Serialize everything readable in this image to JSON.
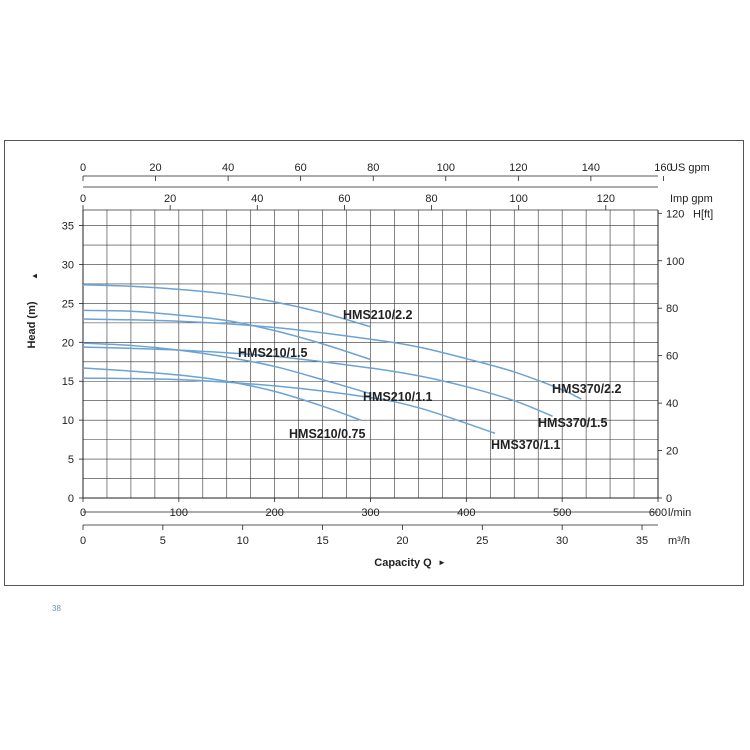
{
  "page": {
    "page_number": "38"
  },
  "chart_data": {
    "type": "line",
    "title": "",
    "ylabel": "Head (m)",
    "ylabel_arrow": "▲",
    "xlabel": "Capacity Q",
    "xlabel_arrow": "►",
    "ylim": [
      0,
      37
    ],
    "xlim": [
      0,
      600
    ],
    "grid": true,
    "line_color": "#6aa3d5",
    "grid_color": "#333333",
    "axes": {
      "left_m": {
        "unit": "",
        "ticks": [
          0,
          5,
          10,
          15,
          20,
          25,
          30,
          35
        ]
      },
      "right_ft": {
        "unit": "H[ft]",
        "ticks": [
          0,
          20,
          40,
          60,
          80,
          100,
          120
        ]
      },
      "bottom_lmin": {
        "unit": "l/min",
        "ticks": [
          0,
          100,
          200,
          300,
          400,
          500,
          600
        ]
      },
      "bottom_m3h": {
        "unit": "m³/h",
        "ticks": [
          0,
          5,
          10,
          15,
          20,
          25,
          30,
          35
        ]
      },
      "top_usgpm": {
        "unit": "US gpm",
        "ticks": [
          0,
          20,
          40,
          60,
          80,
          100,
          120,
          140,
          160
        ]
      },
      "top_impgpm": {
        "unit": "Imp gpm",
        "ticks": [
          0,
          20,
          40,
          60,
          80,
          100,
          120
        ]
      }
    },
    "series": [
      {
        "name": "HMS210/2.2",
        "x": [
          0,
          50,
          100,
          150,
          200,
          250,
          300
        ],
        "y": [
          27.4,
          27.2,
          26.8,
          26.2,
          25.2,
          23.8,
          22.0
        ]
      },
      {
        "name": "HMS210/1.5",
        "x": [
          0,
          50,
          100,
          150,
          200,
          250,
          300
        ],
        "y": [
          24.1,
          24.0,
          23.5,
          22.8,
          21.5,
          19.8,
          17.8
        ]
      },
      {
        "name": "HMS210/1.1",
        "x": [
          0,
          50,
          100,
          150,
          200,
          250,
          300
        ],
        "y": [
          19.9,
          19.6,
          19.0,
          18.1,
          16.9,
          15.2,
          13.4
        ]
      },
      {
        "name": "HMS210/0.75",
        "x": [
          0,
          50,
          100,
          150,
          200,
          250,
          290
        ],
        "y": [
          16.7,
          16.3,
          15.8,
          15.0,
          13.7,
          11.8,
          10.0
        ]
      },
      {
        "name": "HMS370/2.2",
        "x": [
          0,
          100,
          200,
          300,
          350,
          400,
          450,
          500,
          520
        ],
        "y": [
          23.0,
          22.7,
          21.9,
          20.4,
          19.4,
          17.9,
          16.2,
          13.9,
          12.7
        ]
      },
      {
        "name": "HMS370/1.5",
        "x": [
          0,
          100,
          200,
          300,
          350,
          400,
          450,
          490
        ],
        "y": [
          19.4,
          19.0,
          18.2,
          16.7,
          15.7,
          14.3,
          12.5,
          10.5
        ]
      },
      {
        "name": "HMS370/1.1",
        "x": [
          0,
          100,
          200,
          300,
          350,
          400,
          430
        ],
        "y": [
          15.4,
          15.2,
          14.4,
          12.9,
          11.6,
          9.6,
          8.3
        ]
      }
    ],
    "curve_labels": [
      {
        "series": "HMS210/2.2",
        "text": "HMS210/2.2"
      },
      {
        "series": "HMS210/1.5",
        "text": "HMS210/1.5"
      },
      {
        "series": "HMS210/1.1",
        "text": "HMS210/1.1"
      },
      {
        "series": "HMS210/0.75",
        "text": "HMS210/0.75"
      },
      {
        "series": "HMS370/2.2",
        "text": "HMS370/2.2"
      },
      {
        "series": "HMS370/1.5",
        "text": "HMS370/1.5"
      },
      {
        "series": "HMS370/1.1",
        "text": "HMS370/1.1"
      }
    ]
  }
}
